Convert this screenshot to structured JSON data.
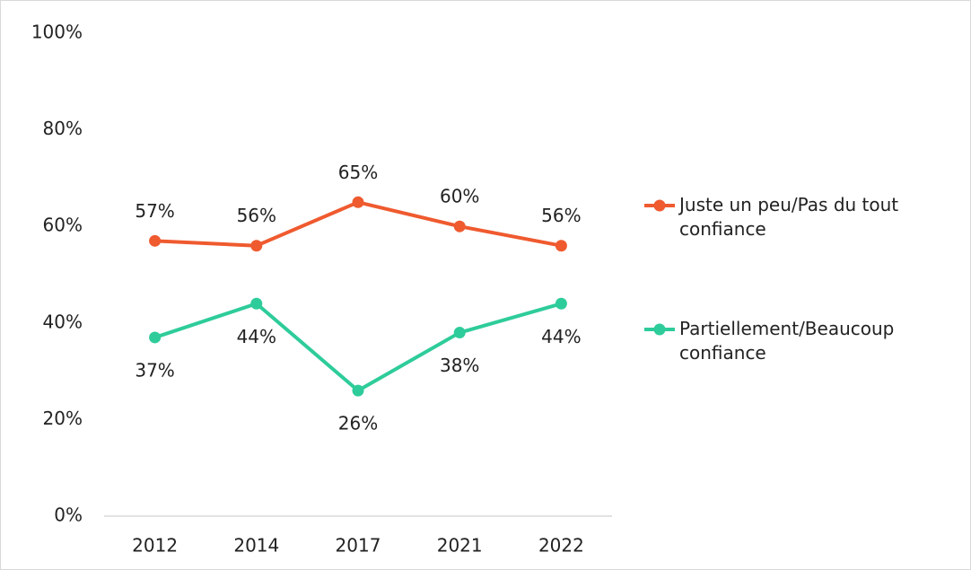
{
  "chart_data": {
    "type": "line",
    "categories": [
      "2012",
      "2014",
      "2017",
      "2021",
      "2022"
    ],
    "series": [
      {
        "name": "Juste un peu/Pas du tout confiance",
        "color": "#ef5a2f",
        "values": [
          57,
          56,
          65,
          60,
          56
        ],
        "value_labels": [
          "57%",
          "56%",
          "65%",
          "60%",
          "56%"
        ]
      },
      {
        "name": "Partiellement/Beaucoup confiance",
        "color": "#2ecc9a",
        "values": [
          37,
          44,
          26,
          38,
          44
        ],
        "value_labels": [
          "37%",
          "44%",
          "26%",
          "38%",
          "44%"
        ]
      }
    ],
    "ylim": [
      0,
      100
    ],
    "yticks": [
      {
        "value": 0,
        "label": "0%"
      },
      {
        "value": 20,
        "label": "20%"
      },
      {
        "value": 40,
        "label": "40%"
      },
      {
        "value": 60,
        "label": "60%"
      },
      {
        "value": 80,
        "label": "80%"
      },
      {
        "value": 100,
        "label": "100%"
      }
    ],
    "grid": false,
    "legend": "right"
  }
}
